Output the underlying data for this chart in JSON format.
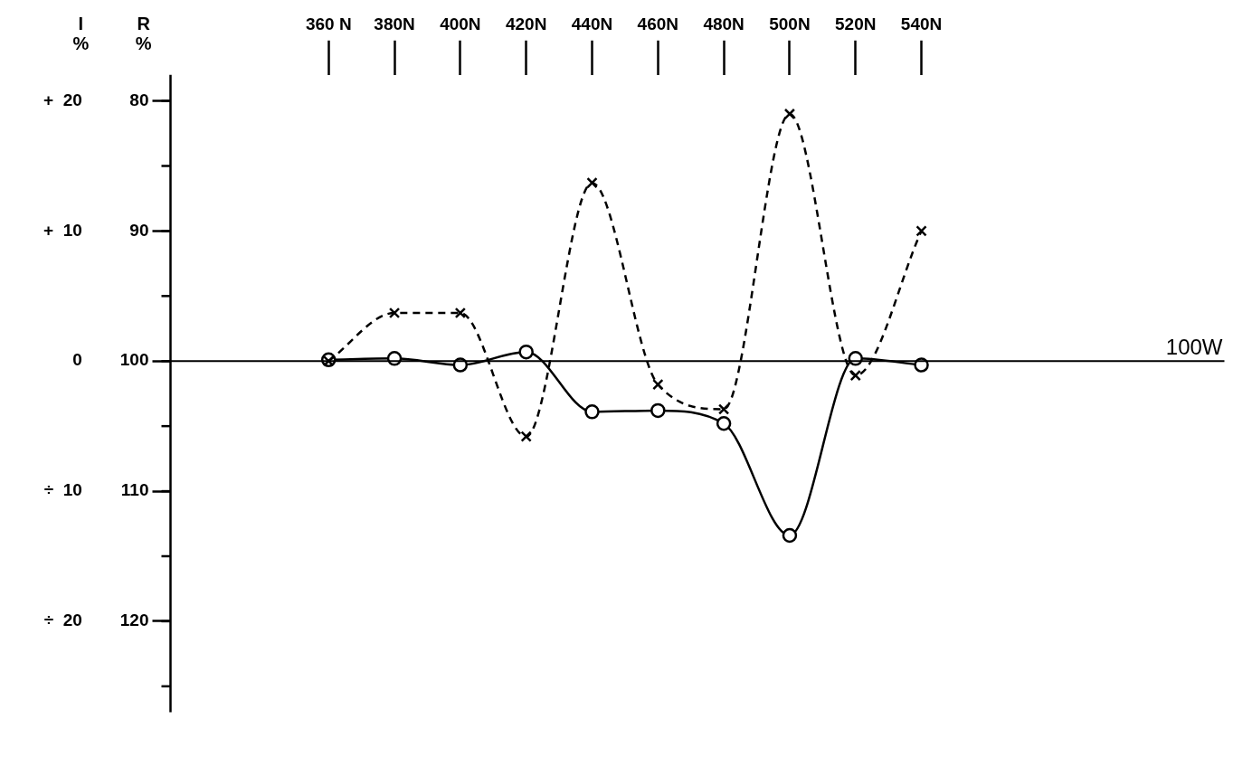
{
  "chart_data": {
    "type": "line",
    "ylabel": "I %",
    "y2label": "R %",
    "x": [
      360,
      380,
      400,
      420,
      440,
      460,
      480,
      500,
      520,
      540
    ],
    "xlim": [
      312,
      632
    ],
    "xticks": [
      {
        "value": 360,
        "label": "360 N"
      },
      {
        "value": 380,
        "label": "380N"
      },
      {
        "value": 400,
        "label": "400N"
      },
      {
        "value": 420,
        "label": "420N"
      },
      {
        "value": 440,
        "label": "440N"
      },
      {
        "value": 460,
        "label": "460N"
      },
      {
        "value": 480,
        "label": "480N"
      },
      {
        "value": 500,
        "label": "500N"
      },
      {
        "value": 520,
        "label": "520N"
      },
      {
        "value": 540,
        "label": "540N"
      }
    ],
    "ylim": [
      -27,
      22
    ],
    "yticks": [
      {
        "value": 20,
        "label": "+  20"
      },
      {
        "value": 15,
        "label": null
      },
      {
        "value": 10,
        "label": "+  10"
      },
      {
        "value": 5,
        "label": null
      },
      0,
      {
        "value": -5,
        "label": null
      },
      {
        "value": -10,
        "label": "÷  10"
      },
      {
        "value": -15,
        "label": null
      },
      {
        "value": -20,
        "label": "÷  20"
      },
      {
        "value": -25,
        "label": null
      }
    ],
    "y2lim": [
      127,
      78
    ],
    "y2ticks": [
      80,
      90,
      100,
      110,
      120
    ],
    "series": [
      {
        "color": "#000000",
        "line_style": "dashed",
        "marker": "cross",
        "values": [
          0,
          3.7,
          3.7,
          -5.8,
          13.7,
          -1.8,
          -3.7,
          19,
          -1.1,
          10
        ]
      },
      {
        "color": "#000000",
        "line_style": "solid",
        "marker": "circle",
        "values": [
          0.1,
          0.2,
          -0.3,
          0.7,
          -3.9,
          -3.8,
          -4.8,
          -13.4,
          0.2,
          -0.3
        ]
      }
    ],
    "ref_lines": [
      {
        "axis": "y",
        "value": 0,
        "label": "100W"
      }
    ],
    "grid": false,
    "legend": false
  }
}
